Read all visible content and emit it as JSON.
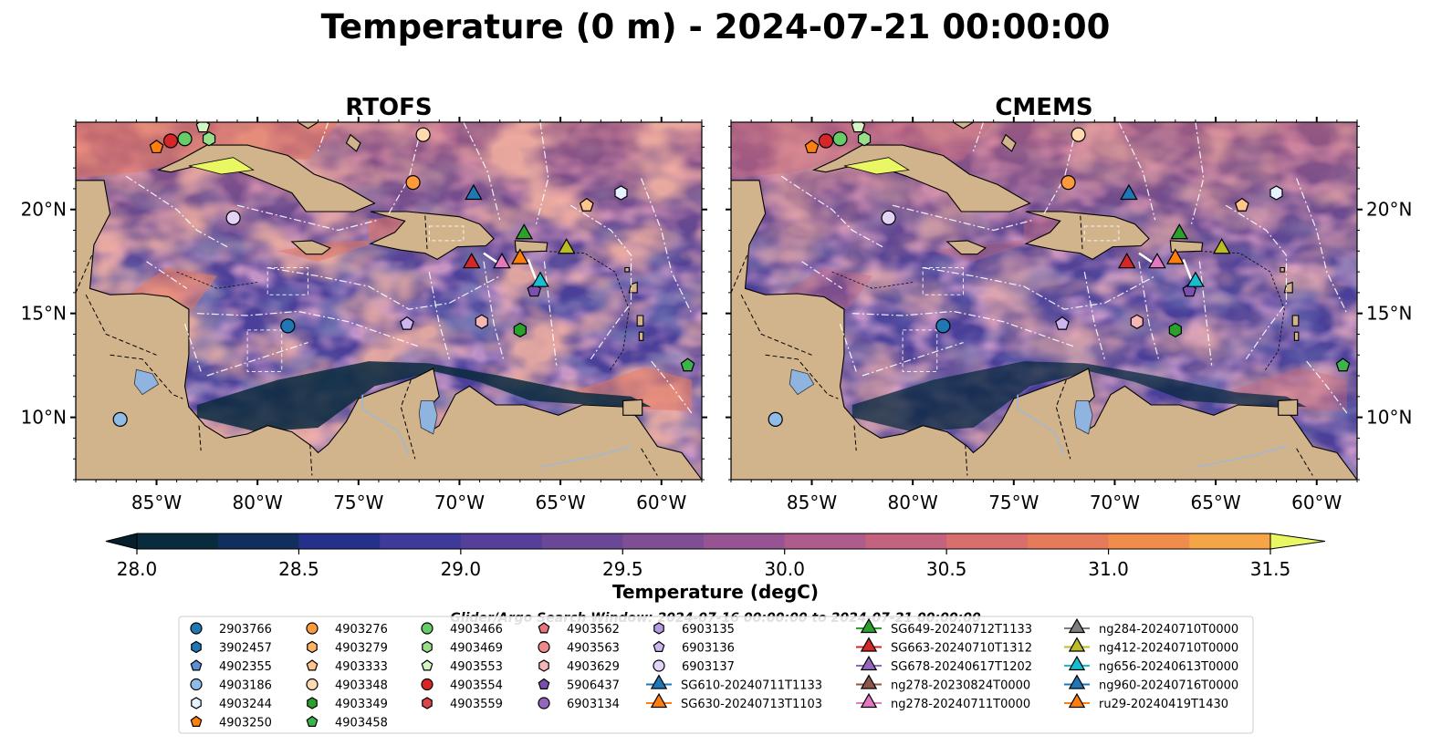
{
  "figure": {
    "title": "Temperature (0 m) - 2024-07-21 00:00:00",
    "search_window": "Glider/Argo Search Window: 2024-07-16 00:00:00 to 2024-07-21 00:00:00"
  },
  "chart_data": {
    "type": "heatmap",
    "panels": [
      {
        "title": "RTOFS",
        "source": "RTOFS"
      },
      {
        "title": "CMEMS",
        "source": "CMEMS"
      }
    ],
    "lon_range": [
      -89,
      -58
    ],
    "lat_range": [
      7,
      24.2
    ],
    "x_ticks": [
      {
        "value": -85,
        "label": "85°W"
      },
      {
        "value": -80,
        "label": "80°W"
      },
      {
        "value": -75,
        "label": "75°W"
      },
      {
        "value": -70,
        "label": "70°W"
      },
      {
        "value": -65,
        "label": "65°W"
      },
      {
        "value": -60,
        "label": "60°W"
      }
    ],
    "y_ticks": [
      {
        "value": 20,
        "label": "20°N"
      },
      {
        "value": 15,
        "label": "15°N"
      },
      {
        "value": 10,
        "label": "10°N"
      }
    ],
    "colorbar": {
      "label": "Temperature (degC)",
      "min": 28.0,
      "max": 31.5,
      "step": 0.25,
      "extend": "both",
      "ticks": [
        {
          "value": 28.0,
          "label": "28.0"
        },
        {
          "value": 28.5,
          "label": "28.5"
        },
        {
          "value": 29.0,
          "label": "29.0"
        },
        {
          "value": 29.5,
          "label": "29.5"
        },
        {
          "value": 30.0,
          "label": "30.0"
        },
        {
          "value": 30.5,
          "label": "30.5"
        },
        {
          "value": 31.0,
          "label": "31.0"
        },
        {
          "value": 31.5,
          "label": "31.5"
        }
      ],
      "colors": [
        "#0a2a3d",
        "#112e5c",
        "#23318a",
        "#3d3a9a",
        "#553f98",
        "#6a4896",
        "#7e4f94",
        "#965592",
        "#ad5c8c",
        "#c46380",
        "#d86e6e",
        "#e67b5c",
        "#f08c4c",
        "#f5a545",
        "#f7c646",
        "#e9f762"
      ],
      "under_color": "#071e2c",
      "over_color": "#e9f762"
    },
    "legend": [
      {
        "id": "2903766",
        "marker": "circle",
        "color": "#1f77b4",
        "lon": -78.5,
        "lat": 14.4
      },
      {
        "id": "3902457",
        "marker": "hexagon",
        "color": "#1f77b4",
        "lon": null,
        "lat": null
      },
      {
        "id": "4902355",
        "marker": "pentagon",
        "color": "#5b8fd6",
        "lon": null,
        "lat": null
      },
      {
        "id": "4903186",
        "marker": "circle",
        "color": "#8fbce6",
        "lon": -86.8,
        "lat": 9.9
      },
      {
        "id": "4903244",
        "marker": "hexagon",
        "color": "#e6f2ff",
        "lon": -62.0,
        "lat": 20.8
      },
      {
        "id": "4903250",
        "marker": "pentagon",
        "color": "#ff7f0e",
        "lon": -85.0,
        "lat": 23.0
      },
      {
        "id": "4903276",
        "marker": "circle",
        "color": "#ff9a3c",
        "lon": -72.3,
        "lat": 21.3
      },
      {
        "id": "4903279",
        "marker": "hexagon",
        "color": "#ffb366",
        "lon": null,
        "lat": null
      },
      {
        "id": "4903333",
        "marker": "pentagon",
        "color": "#ffc68c",
        "lon": -63.7,
        "lat": 20.2
      },
      {
        "id": "4903348",
        "marker": "circle",
        "color": "#ffd9b0",
        "lon": -71.8,
        "lat": 23.6
      },
      {
        "id": "4903349",
        "marker": "hexagon",
        "color": "#2ca02c",
        "lon": -67.0,
        "lat": 14.2
      },
      {
        "id": "4903458",
        "marker": "pentagon",
        "color": "#3cb44b",
        "lon": -58.7,
        "lat": 12.5
      },
      {
        "id": "4903466",
        "marker": "circle",
        "color": "#66cc66",
        "lon": -83.6,
        "lat": 23.4
      },
      {
        "id": "4903469",
        "marker": "hexagon",
        "color": "#98df8a",
        "lon": -82.4,
        "lat": 23.4
      },
      {
        "id": "4903553",
        "marker": "pentagon",
        "color": "#d4f5c4",
        "lon": -82.7,
        "lat": 24.0
      },
      {
        "id": "4903554",
        "marker": "circle",
        "color": "#d62728",
        "lon": -84.3,
        "lat": 23.3
      },
      {
        "id": "4903559",
        "marker": "hexagon",
        "color": "#d94848",
        "lon": null,
        "lat": null
      },
      {
        "id": "4903562",
        "marker": "pentagon",
        "color": "#e8747c",
        "lon": null,
        "lat": null
      },
      {
        "id": "4903563",
        "marker": "circle",
        "color": "#f08a8a",
        "lon": null,
        "lat": null
      },
      {
        "id": "4903629",
        "marker": "hexagon",
        "color": "#f7b6b6",
        "lon": -68.9,
        "lat": 14.6
      },
      {
        "id": "5906437",
        "marker": "pentagon",
        "color": "#7a4fb0",
        "lon": -66.3,
        "lat": 16.1
      },
      {
        "id": "6903134",
        "marker": "circle",
        "color": "#9467bd",
        "lon": null,
        "lat": null
      },
      {
        "id": "6903135",
        "marker": "hexagon",
        "color": "#b79be0",
        "lon": null,
        "lat": null
      },
      {
        "id": "6903136",
        "marker": "pentagon",
        "color": "#cdb5f0",
        "lon": -72.6,
        "lat": 14.5
      },
      {
        "id": "6903137",
        "marker": "circle",
        "color": "#e3d3f7",
        "lon": -81.2,
        "lat": 19.6
      },
      {
        "id": "SG610-20240711T1133",
        "marker": "triangle",
        "color": "#1f77b4",
        "lon": -69.3,
        "lat": 20.8
      },
      {
        "id": "SG630-20240713T1103",
        "marker": "triangle",
        "color": "#ff7f0e",
        "lon": -67.0,
        "lat": 17.7
      },
      {
        "id": "SG649-20240712T1133",
        "marker": "triangle",
        "color": "#2ca02c",
        "lon": -66.8,
        "lat": 18.9
      },
      {
        "id": "SG663-20240710T1312",
        "marker": "triangle",
        "color": "#d62728",
        "lon": -69.4,
        "lat": 17.5
      },
      {
        "id": "SG678-20240617T1202",
        "marker": "triangle",
        "color": "#9467bd",
        "lon": null,
        "lat": null
      },
      {
        "id": "ng278-20230824T0000",
        "marker": "triangle",
        "color": "#8c564b",
        "lon": null,
        "lat": null
      },
      {
        "id": "ng278-20240711T0000",
        "marker": "triangle",
        "color": "#e377c2",
        "lon": -67.9,
        "lat": 17.5
      },
      {
        "id": "ng284-20240710T0000",
        "marker": "triangle",
        "color": "#7f7f7f",
        "lon": null,
        "lat": null
      },
      {
        "id": "ng412-20240710T0000",
        "marker": "triangle",
        "color": "#bcbd22",
        "lon": -64.7,
        "lat": 18.2
      },
      {
        "id": "ng656-20240613T0000",
        "marker": "triangle",
        "color": "#17becf",
        "lon": -66.0,
        "lat": 16.6
      },
      {
        "id": "ng960-20240716T0000",
        "marker": "triangle",
        "color": "#1f77b4",
        "lon": null,
        "lat": null
      },
      {
        "id": "ru29-20240419T1430",
        "marker": "triangle",
        "color": "#ff7f0e",
        "lon": null,
        "lat": null
      }
    ]
  },
  "colors": {
    "land": "#d2b48c",
    "water_body": "#8fb4e0",
    "ocean_base": "#4a3f99",
    "eez_line": "#ffffff"
  }
}
